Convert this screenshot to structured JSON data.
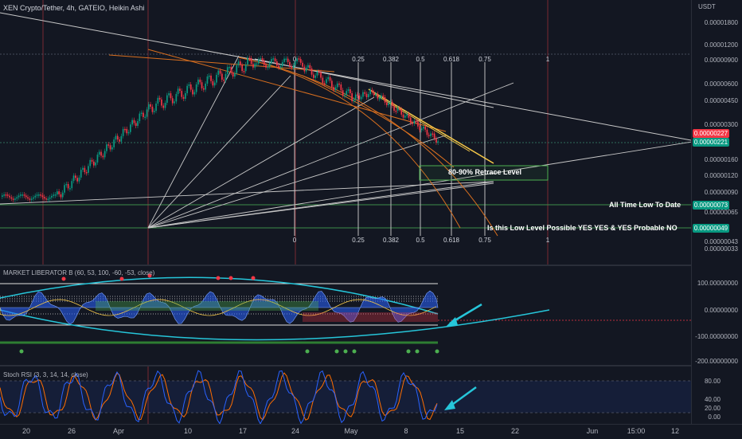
{
  "header": {
    "title": "XEN Crypto/Tether, 4h, GATEIO, Heikin Ashi"
  },
  "osc_label": "MARKET LIBERATOR B (60, 53, 100, -60, -53, close)",
  "rsi_label": "Stoch RSI (3, 3, 14, 14, close)",
  "price_axis": {
    "currency": "USDT",
    "ticks": [
      "0.00001800",
      "0.00001200",
      "0.00000900",
      "0.00000600",
      "0.00000450",
      "0.00000300",
      "0.00000160",
      "0.00000120",
      "0.00000090",
      "0.00000065",
      "0.00000043",
      "0.00000033"
    ]
  },
  "price_badges": [
    {
      "value": "0.00000227",
      "color": "#f23645"
    },
    {
      "value": "0.00000221",
      "color": "#089981"
    },
    {
      "value": "0.00000073",
      "color": "#089981"
    },
    {
      "value": "0.00000049",
      "color": "#089981"
    }
  ],
  "osc_axis": [
    "100.00000000",
    "0.00000000",
    "-100.00000000",
    "-200.00000000"
  ],
  "rsi_axis": [
    "80.00",
    "40.00",
    "20.00",
    "0.00"
  ],
  "time_axis": [
    "20",
    "26",
    "Apr",
    "10",
    "17",
    "24",
    "May",
    "8",
    "15",
    "22",
    "Jun",
    "15:00",
    "12"
  ],
  "fib_labels_top": [
    "0",
    "0.25",
    "0.382",
    "0.5",
    "0.618",
    "0.75",
    "1"
  ],
  "fib_labels_bottom": [
    "0",
    "0.25",
    "0.382",
    "0.5",
    "0.618",
    "0.75",
    "1"
  ],
  "annotations": {
    "retrace": "80-90% Retrace Level",
    "atl": "All Time Low To Date",
    "question": "Is this Low Level Possible YES YES & YES Probable NO"
  },
  "colors": {
    "up": "#089981",
    "down": "#f23645",
    "trendline": "#c8c8c8",
    "fib_fan": "#d96f1f",
    "highlight": "#f7c948",
    "green_box": "#4caf50",
    "rsi_k": "#2962ff",
    "rsi_d": "#ff6d00",
    "cyan": "#26c6da"
  }
}
